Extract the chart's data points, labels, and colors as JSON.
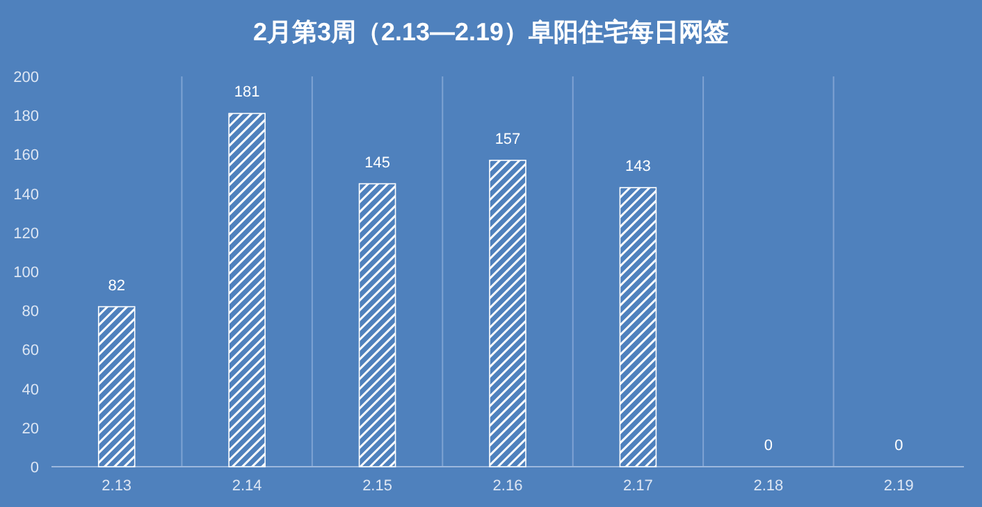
{
  "chart_data": {
    "type": "bar",
    "title": "2月第3周（2.13—2.19）阜阳住宅每日网签",
    "categories": [
      "2.13",
      "2.14",
      "2.15",
      "2.16",
      "2.17",
      "2.18",
      "2.19"
    ],
    "values": [
      82,
      181,
      145,
      157,
      143,
      0,
      0
    ],
    "color": "#ffffff",
    "ylim": [
      0,
      200
    ],
    "yticks": [
      0,
      20,
      40,
      60,
      80,
      100,
      120,
      140,
      160,
      180,
      200
    ],
    "grid": "x",
    "data_labels": true
  }
}
